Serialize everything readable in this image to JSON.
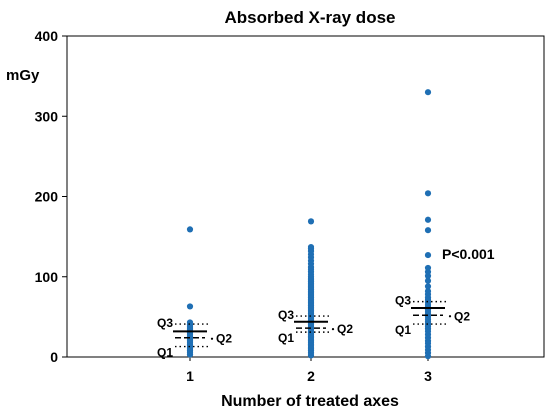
{
  "chart_data": {
    "type": "scatter",
    "title": "Absorbed X-ray dose",
    "xlabel": "Number of treated axes",
    "ylabel": "mGy",
    "categories": [
      "1",
      "2",
      "3"
    ],
    "ylim": [
      0,
      400
    ],
    "yticks": [
      0,
      100,
      200,
      300,
      400
    ],
    "grid": false,
    "legend": "none",
    "point_color": "#1f6fb4",
    "annotation": "P<0.001",
    "quartile_labels": {
      "q1": "Q1",
      "q2": "Q2",
      "q3": "Q3"
    },
    "groups": [
      {
        "category": "1",
        "q1": 13,
        "median": 24,
        "q3": 41,
        "mean": 32,
        "values": [
          3,
          6,
          8,
          10,
          12,
          14,
          16,
          18,
          20,
          22,
          24,
          26,
          28,
          30,
          32,
          34,
          36,
          38,
          40,
          43,
          63,
          159
        ]
      },
      {
        "category": "2",
        "q1": 31,
        "median": 36,
        "q3": 51,
        "mean": 44,
        "values": [
          2,
          5,
          8,
          10,
          12,
          14,
          16,
          18,
          20,
          22,
          24,
          26,
          28,
          30,
          32,
          34,
          36,
          38,
          40,
          42,
          44,
          46,
          48,
          50,
          52,
          54,
          56,
          58,
          60,
          62,
          64,
          66,
          68,
          70,
          72,
          74,
          76,
          78,
          80,
          82,
          84,
          86,
          88,
          90,
          92,
          94,
          96,
          98,
          100,
          103,
          106,
          109,
          112,
          116,
          120,
          124,
          128,
          132,
          135,
          137,
          169
        ]
      },
      {
        "category": "3",
        "q1": 41,
        "median": 52,
        "q3": 69,
        "mean": 61,
        "values": [
          1,
          5,
          9,
          13,
          17,
          20,
          24,
          28,
          32,
          35,
          38,
          41,
          44,
          47,
          50,
          53,
          56,
          59,
          62,
          65,
          68,
          71,
          74,
          78,
          82,
          88,
          95,
          101,
          106,
          111,
          127,
          158,
          171,
          204,
          330
        ]
      }
    ]
  }
}
